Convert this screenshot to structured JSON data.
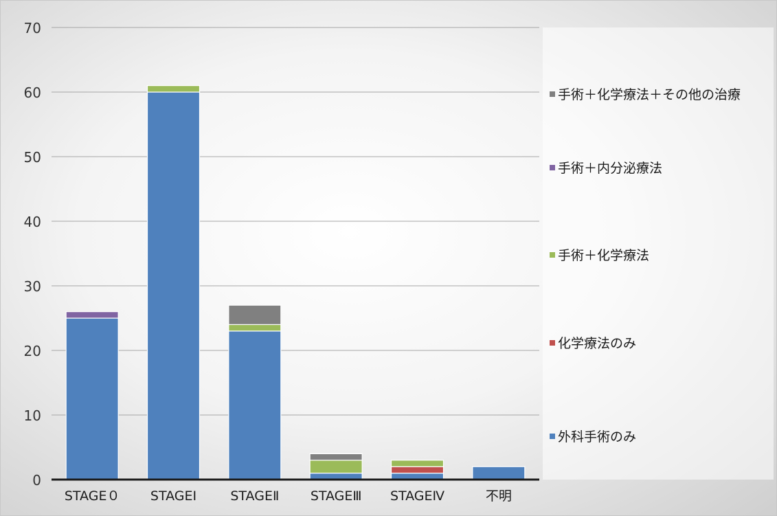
{
  "chart_data": {
    "type": "bar",
    "stacked": true,
    "categories": [
      "STAGE０",
      "STAGEⅠ",
      "STAGEⅡ",
      "STAGEⅢ",
      "STAGEⅣ",
      "不明"
    ],
    "series": [
      {
        "name": "外科手術のみ",
        "color": "#4f81bd",
        "values": [
          25,
          60,
          23,
          1,
          1,
          2
        ]
      },
      {
        "name": "化学療法のみ",
        "color": "#c0504d",
        "values": [
          0,
          0,
          0,
          0,
          1,
          0
        ]
      },
      {
        "name": "手術＋化学療法",
        "color": "#9bbb59",
        "values": [
          0,
          1,
          1,
          2,
          1,
          0
        ]
      },
      {
        "name": "手術＋内分泌療法",
        "color": "#8064a2",
        "values": [
          1,
          0,
          0,
          0,
          0,
          0
        ]
      },
      {
        "name": "手術＋化学療法＋その他の治療",
        "color": "#808080",
        "values": [
          0,
          0,
          3,
          1,
          0,
          0
        ]
      }
    ],
    "ylim": [
      0,
      70
    ],
    "yticks": [
      0,
      10,
      20,
      30,
      40,
      50,
      60,
      70
    ],
    "grid": true,
    "legend_position": "right",
    "title": "",
    "xlabel": "",
    "ylabel": ""
  }
}
